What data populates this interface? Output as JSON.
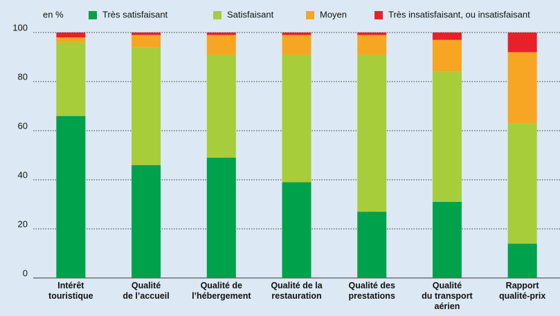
{
  "chart_data": {
    "type": "stacked_bar",
    "unit_label": "en %",
    "categories": [
      [
        "Intérêt",
        "touristique"
      ],
      [
        "Qualité",
        "de l’accueil"
      ],
      [
        "Qualité de",
        "l’hébergement"
      ],
      [
        "Qualité de la",
        "restauration"
      ],
      [
        "Qualité des",
        "prestations"
      ],
      [
        "Qualité",
        "du transport",
        "aérien"
      ],
      [
        "Rapport",
        "qualité-prix"
      ]
    ],
    "series": [
      {
        "name": "Très satisfaisant",
        "color": "#00a14b",
        "values": [
          66,
          46,
          49,
          39,
          27,
          31,
          14
        ]
      },
      {
        "name": "Satisfaisant",
        "color": "#a8cd3a",
        "values": [
          30,
          48,
          42,
          52,
          64,
          53,
          49
        ]
      },
      {
        "name": "Moyen",
        "color": "#f6a622",
        "values": [
          2,
          5,
          8,
          8,
          8,
          13,
          29
        ]
      },
      {
        "name": "Très insatisfaisant, ou insatisfaisant",
        "color": "#e8202a",
        "values": [
          2,
          1,
          1,
          1,
          1,
          3,
          8
        ]
      }
    ],
    "ylim": [
      0,
      100
    ],
    "yticks": [
      0,
      20,
      40,
      60,
      80,
      100
    ],
    "grid": true
  }
}
